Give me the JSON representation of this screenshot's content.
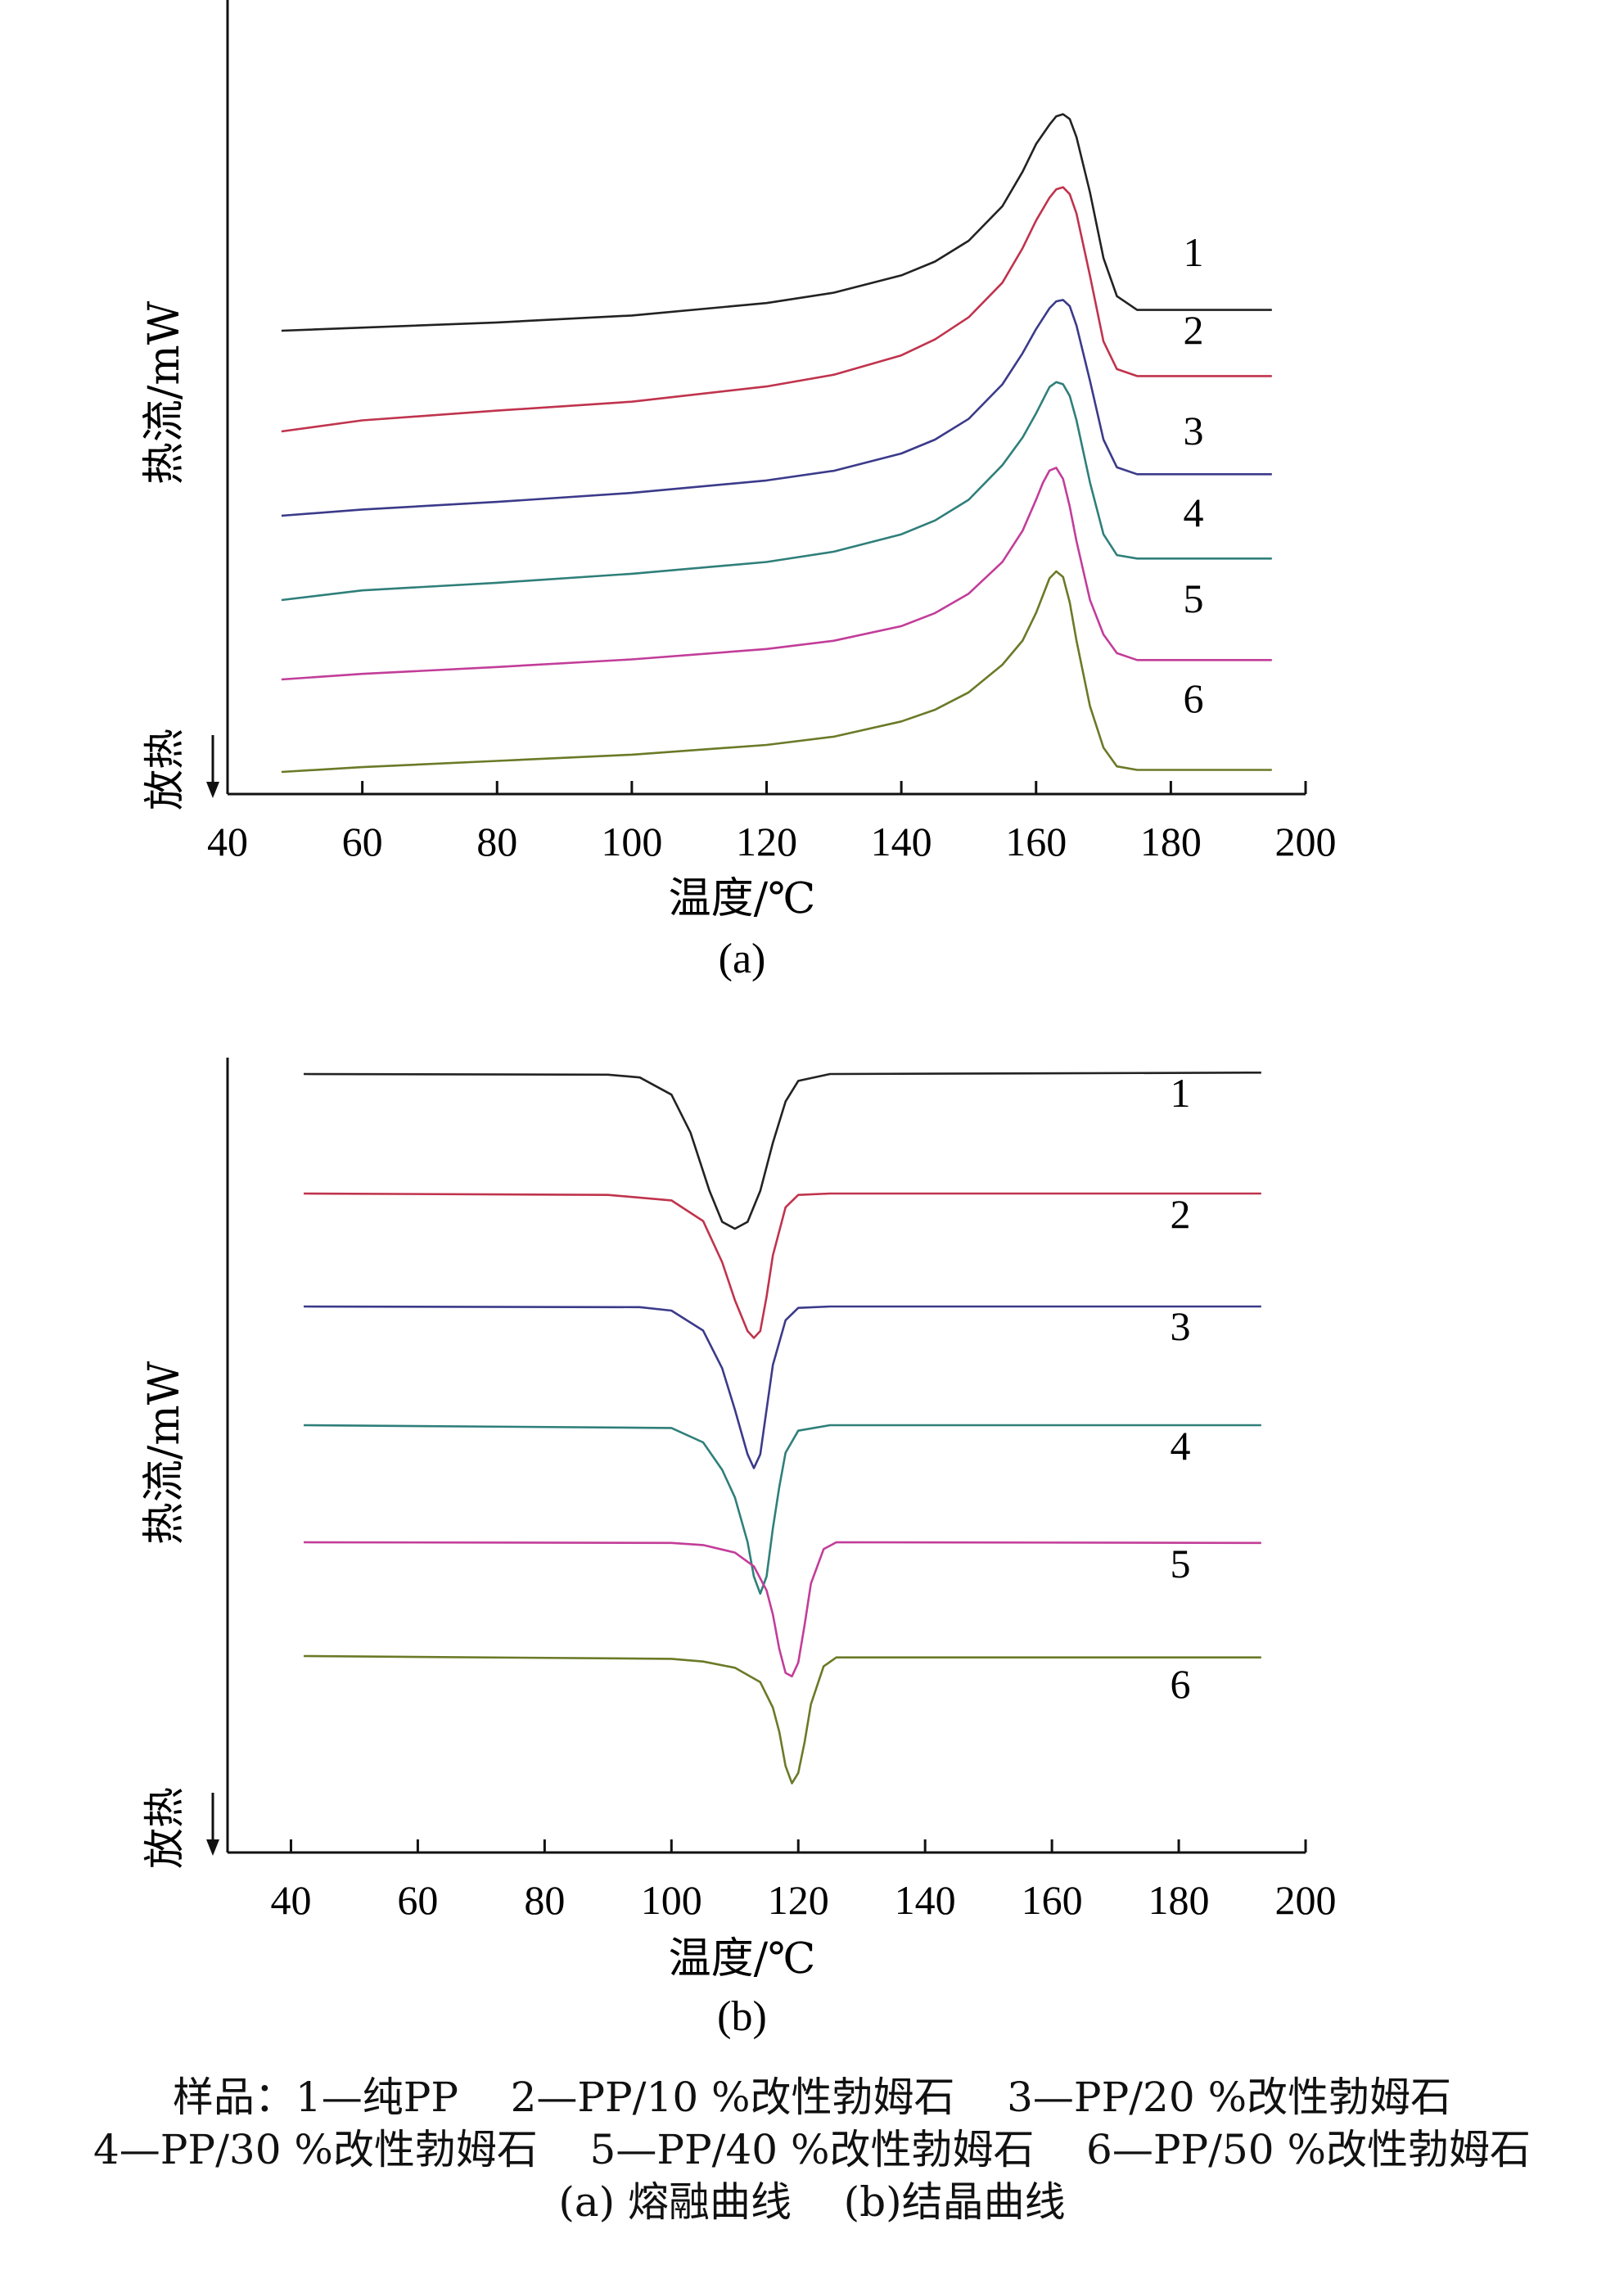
{
  "chart_data": [
    {
      "type": "line",
      "panel_label": "(a)",
      "xlabel": "温度/℃",
      "ylabel": "热流/mW",
      "direction_label": "放热",
      "xlim": [
        40,
        200
      ],
      "x_ticks": [
        40,
        60,
        80,
        100,
        120,
        140,
        160,
        180,
        200
      ],
      "y_units": "relative",
      "series": [
        {
          "name": "1",
          "color": "#222222",
          "x": [
            48,
            80,
            100,
            120,
            130,
            140,
            145,
            150,
            155,
            158,
            160,
            162,
            163,
            164,
            165,
            166,
            168,
            170,
            172,
            175,
            180,
            195
          ],
          "y": [
            0,
            1.2,
            2.2,
            4.0,
            5.5,
            8.0,
            10.0,
            13.0,
            18.0,
            23.0,
            27.0,
            29.8,
            31.0,
            31.3,
            30.6,
            28.0,
            20.0,
            10.5,
            5.0,
            3.0,
            3.0,
            3.0
          ]
        },
        {
          "name": "2",
          "color": "#c0334d",
          "x": [
            48,
            60,
            80,
            100,
            120,
            130,
            140,
            145,
            150,
            155,
            158,
            160,
            162,
            163,
            164,
            165,
            166,
            168,
            170,
            172,
            175,
            180,
            195
          ],
          "y": [
            0,
            1.6,
            3.0,
            4.3,
            6.5,
            8.2,
            11.0,
            13.3,
            16.5,
            21.5,
            26.5,
            30.5,
            33.8,
            35.0,
            35.3,
            34.3,
            31.5,
            22.5,
            13.0,
            9.0,
            8.0,
            8.0,
            8.0
          ]
        },
        {
          "name": "3",
          "color": "#3b3a8a",
          "x": [
            48,
            60,
            80,
            100,
            120,
            130,
            140,
            145,
            150,
            155,
            158,
            160,
            162,
            163,
            164,
            165,
            166,
            168,
            170,
            172,
            175,
            180,
            195
          ],
          "y": [
            0,
            0.9,
            2.0,
            3.3,
            5.1,
            6.5,
            9.0,
            11.0,
            14.0,
            19.0,
            23.5,
            27.0,
            30.0,
            31.0,
            31.2,
            30.3,
            27.5,
            19.5,
            11.0,
            7.0,
            6.0,
            6.0,
            6.0
          ]
        },
        {
          "name": "4",
          "color": "#2f7f7a",
          "x": [
            48,
            60,
            80,
            100,
            120,
            130,
            140,
            145,
            150,
            155,
            158,
            160,
            162,
            163,
            164,
            165,
            166,
            168,
            170,
            172,
            175,
            180,
            195
          ],
          "y": [
            0,
            1.4,
            2.5,
            3.8,
            5.5,
            7.0,
            9.5,
            11.5,
            14.5,
            19.5,
            23.5,
            27.0,
            30.8,
            31.5,
            31.2,
            29.5,
            26.0,
            17.0,
            9.5,
            6.5,
            6.0,
            6.0,
            6.0
          ]
        },
        {
          "name": "5",
          "color": "#c23d99",
          "x": [
            48,
            60,
            80,
            100,
            120,
            130,
            140,
            145,
            150,
            155,
            158,
            160,
            161,
            162,
            163,
            164,
            165,
            166,
            168,
            170,
            172,
            175,
            180,
            195
          ],
          "y": [
            0,
            0.8,
            1.8,
            2.9,
            4.4,
            5.6,
            7.7,
            9.6,
            12.4,
            17.0,
            21.5,
            26.0,
            28.4,
            30.2,
            30.6,
            29.0,
            25.0,
            20.0,
            11.5,
            6.5,
            3.8,
            2.8,
            2.8,
            2.8
          ]
        },
        {
          "name": "6",
          "color": "#6a7a27",
          "x": [
            48,
            60,
            80,
            100,
            120,
            130,
            140,
            145,
            150,
            155,
            158,
            160,
            161,
            162,
            163,
            164,
            165,
            166,
            168,
            170,
            172,
            175,
            195
          ],
          "y": [
            0,
            0.7,
            1.6,
            2.5,
            3.9,
            5.1,
            7.3,
            9.0,
            11.5,
            15.5,
            19.0,
            23.0,
            25.5,
            28.0,
            29.0,
            28.2,
            24.5,
            19.0,
            9.5,
            3.5,
            0.8,
            0.3,
            0.3
          ]
        }
      ]
    },
    {
      "type": "line",
      "panel_label": "(b)",
      "xlabel": "温度/℃",
      "ylabel": "热流/mW",
      "direction_label": "放热",
      "xlim": [
        30,
        200
      ],
      "x_ticks": [
        40,
        60,
        80,
        100,
        120,
        140,
        160,
        180,
        200
      ],
      "y_units": "relative",
      "series": [
        {
          "name": "1",
          "color": "#222222",
          "x": [
            42,
            90,
            95,
            100,
            103,
            106,
            108,
            110,
            112,
            114,
            116,
            118,
            120,
            125,
            193
          ],
          "y": [
            0,
            -0.1,
            -0.5,
            -3.0,
            -8.5,
            -17.0,
            -21.5,
            -22.5,
            -21.5,
            -17.0,
            -10.0,
            -4.0,
            -1.0,
            0,
            0.2
          ]
        },
        {
          "name": "2",
          "color": "#c0334d",
          "x": [
            42,
            90,
            100,
            105,
            108,
            110,
            112,
            113,
            114,
            115,
            116,
            118,
            120,
            125,
            193
          ],
          "y": [
            0,
            -0.2,
            -1.0,
            -4.0,
            -10.0,
            -15.5,
            -20.0,
            -21.0,
            -20.0,
            -15.0,
            -9.0,
            -2.0,
            -0.2,
            0,
            0
          ]
        },
        {
          "name": "3",
          "color": "#3b3a8a",
          "x": [
            42,
            95,
            100,
            105,
            108,
            110,
            112,
            113,
            114,
            115,
            116,
            118,
            120,
            125,
            193
          ],
          "y": [
            0,
            -0.1,
            -0.6,
            -3.5,
            -9.0,
            -15.0,
            -21.5,
            -23.5,
            -21.5,
            -15.0,
            -8.5,
            -2.0,
            -0.2,
            0,
            0
          ]
        },
        {
          "name": "4",
          "color": "#2f7f7a",
          "x": [
            42,
            100,
            105,
            108,
            110,
            112,
            113,
            114,
            115,
            116,
            117,
            118,
            120,
            125,
            193
          ],
          "y": [
            0,
            -0.4,
            -2.5,
            -6.5,
            -10.5,
            -17.0,
            -22.0,
            -24.5,
            -22.0,
            -15.0,
            -9.0,
            -4.0,
            -0.8,
            0,
            0
          ]
        },
        {
          "name": "5",
          "color": "#c23d99",
          "x": [
            42,
            100,
            105,
            110,
            113,
            115,
            116,
            117,
            118,
            119,
            120,
            121,
            122,
            124,
            126,
            193
          ],
          "y": [
            0,
            -0.1,
            -0.4,
            -1.5,
            -3.5,
            -7.0,
            -10.5,
            -15.5,
            -19.0,
            -19.5,
            -17.5,
            -12.0,
            -6.0,
            -1.0,
            0,
            -0.1
          ]
        },
        {
          "name": "6",
          "color": "#6a7a27",
          "x": [
            42,
            100,
            105,
            110,
            114,
            116,
            117,
            118,
            119,
            120,
            121,
            122,
            124,
            126,
            193
          ],
          "y": [
            0,
            -0.4,
            -0.8,
            -1.7,
            -3.8,
            -7.5,
            -11.0,
            -16.0,
            -18.5,
            -17.0,
            -12.5,
            -7.0,
            -1.5,
            -0.2,
            -0.2
          ]
        }
      ]
    }
  ],
  "caption": {
    "legend_line1": "样品：1—纯PP    2—PP/10 %改性勃姆石    3—PP/20 %改性勃姆石",
    "legend_line2": "4—PP/30 %改性勃姆石    5—PP/40 %改性勃姆石    6—PP/50 %改性勃姆石",
    "line3": "(a) 熔融曲线    (b)结晶曲线"
  }
}
